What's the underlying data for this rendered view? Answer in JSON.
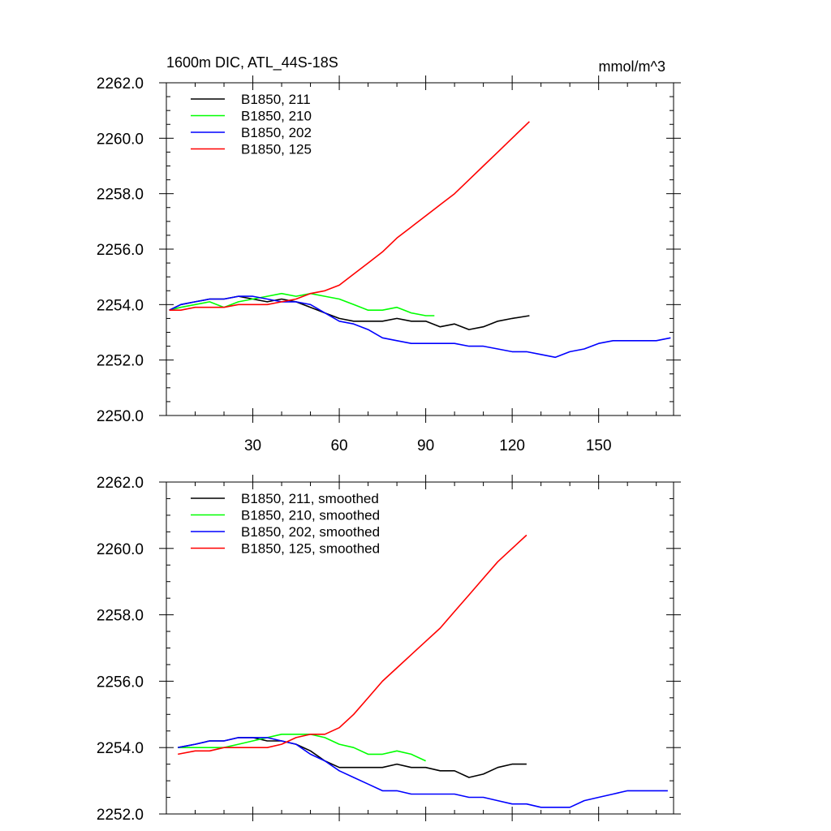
{
  "chart_data": [
    {
      "type": "line",
      "title": "1600m DIC, ATL_44S-18S",
      "units": "mmol/m^3",
      "xlim": [
        0,
        176
      ],
      "ylim": [
        2250,
        2262
      ],
      "xticks": [
        30,
        60,
        90,
        120,
        150
      ],
      "xtick_labels": [
        "30",
        "60",
        "90",
        "120",
        "150"
      ],
      "yticks": [
        2250,
        2252,
        2254,
        2256,
        2258,
        2260,
        2262
      ],
      "ytick_labels": [
        "2250.0",
        "2252.0",
        "2254.0",
        "2256.0",
        "2258.0",
        "2260.0",
        "2262.0"
      ],
      "legend_position": "top-left",
      "series": [
        {
          "name": "B1850, 211",
          "color": "#000000",
          "x": [
            1,
            5,
            10,
            15,
            20,
            25,
            30,
            35,
            40,
            45,
            50,
            55,
            60,
            65,
            70,
            75,
            80,
            85,
            90,
            95,
            100,
            105,
            110,
            115,
            120,
            126
          ],
          "y": [
            2253.8,
            2254.0,
            2254.1,
            2254.2,
            2254.2,
            2254.3,
            2254.2,
            2254.1,
            2254.2,
            2254.1,
            2253.9,
            2253.7,
            2253.5,
            2253.4,
            2253.4,
            2253.4,
            2253.5,
            2253.4,
            2253.4,
            2253.2,
            2253.3,
            2253.1,
            2253.2,
            2253.4,
            2253.5,
            2253.6
          ]
        },
        {
          "name": "B1850, 210",
          "color": "#00ff00",
          "x": [
            1,
            5,
            10,
            15,
            20,
            25,
            30,
            35,
            40,
            45,
            50,
            55,
            60,
            65,
            70,
            75,
            80,
            85,
            90,
            93
          ],
          "y": [
            2253.8,
            2253.9,
            2254.0,
            2254.1,
            2253.9,
            2254.1,
            2254.2,
            2254.3,
            2254.4,
            2254.3,
            2254.4,
            2254.3,
            2254.2,
            2254.0,
            2253.8,
            2253.8,
            2253.9,
            2253.7,
            2253.6,
            2253.6
          ]
        },
        {
          "name": "B1850, 202",
          "color": "#0000ff",
          "x": [
            1,
            5,
            10,
            15,
            20,
            25,
            30,
            35,
            40,
            45,
            50,
            55,
            60,
            65,
            70,
            75,
            80,
            85,
            90,
            95,
            100,
            105,
            110,
            115,
            120,
            125,
            130,
            135,
            140,
            145,
            150,
            155,
            160,
            165,
            170,
            175
          ],
          "y": [
            2253.8,
            2254.0,
            2254.1,
            2254.2,
            2254.2,
            2254.3,
            2254.3,
            2254.2,
            2254.1,
            2254.1,
            2254.0,
            2253.7,
            2253.4,
            2253.3,
            2253.1,
            2252.8,
            2252.7,
            2252.6,
            2252.6,
            2252.6,
            2252.6,
            2252.5,
            2252.5,
            2252.4,
            2252.3,
            2252.3,
            2252.2,
            2252.1,
            2252.3,
            2252.4,
            2252.6,
            2252.7,
            2252.7,
            2252.7,
            2252.7,
            2252.8
          ]
        },
        {
          "name": "B1850, 125",
          "color": "#ff0000",
          "x": [
            1,
            5,
            10,
            15,
            20,
            25,
            30,
            35,
            40,
            45,
            50,
            55,
            60,
            65,
            70,
            75,
            80,
            85,
            90,
            95,
            100,
            105,
            110,
            115,
            120,
            126
          ],
          "y": [
            2253.8,
            2253.8,
            2253.9,
            2253.9,
            2253.9,
            2254.0,
            2254.0,
            2254.0,
            2254.1,
            2254.2,
            2254.4,
            2254.5,
            2254.7,
            2255.1,
            2255.5,
            2255.9,
            2256.4,
            2256.8,
            2257.2,
            2257.6,
            2258.0,
            2258.5,
            2259.0,
            2259.5,
            2260.0,
            2260.6
          ]
        }
      ]
    },
    {
      "type": "line",
      "xlim": [
        0,
        176
      ],
      "ylim": [
        2252,
        2262
      ],
      "yticks": [
        2252,
        2254,
        2256,
        2258,
        2260,
        2262
      ],
      "ytick_labels": [
        "2252.0",
        "2254.0",
        "2256.0",
        "2258.0",
        "2260.0",
        "2262.0"
      ],
      "legend_position": "top-left",
      "series": [
        {
          "name": "B1850, 211, smoothed",
          "color": "#000000",
          "x": [
            4,
            10,
            15,
            20,
            25,
            30,
            35,
            40,
            45,
            50,
            55,
            60,
            65,
            70,
            75,
            80,
            85,
            90,
            95,
            100,
            105,
            110,
            115,
            120,
            125
          ],
          "y": [
            2254.0,
            2254.1,
            2254.2,
            2254.2,
            2254.3,
            2254.3,
            2254.2,
            2254.2,
            2254.1,
            2253.9,
            2253.6,
            2253.4,
            2253.4,
            2253.4,
            2253.4,
            2253.5,
            2253.4,
            2253.4,
            2253.3,
            2253.3,
            2253.1,
            2253.2,
            2253.4,
            2253.5,
            2253.5
          ]
        },
        {
          "name": "B1850, 210, smoothed",
          "color": "#00ff00",
          "x": [
            4,
            10,
            15,
            20,
            25,
            30,
            35,
            40,
            45,
            50,
            55,
            60,
            65,
            70,
            75,
            80,
            85,
            90
          ],
          "y": [
            2254.0,
            2254.0,
            2254.0,
            2254.0,
            2254.1,
            2254.2,
            2254.3,
            2254.4,
            2254.4,
            2254.4,
            2254.3,
            2254.1,
            2254.0,
            2253.8,
            2253.8,
            2253.9,
            2253.8,
            2253.6
          ]
        },
        {
          "name": "B1850, 202, smoothed",
          "color": "#0000ff",
          "x": [
            4,
            10,
            15,
            20,
            25,
            30,
            35,
            40,
            45,
            50,
            55,
            60,
            65,
            70,
            75,
            80,
            85,
            90,
            95,
            100,
            105,
            110,
            115,
            120,
            125,
            130,
            135,
            140,
            145,
            150,
            155,
            160,
            165,
            170,
            174
          ],
          "y": [
            2254.0,
            2254.1,
            2254.2,
            2254.2,
            2254.3,
            2254.3,
            2254.3,
            2254.2,
            2254.1,
            2253.8,
            2253.6,
            2253.3,
            2253.1,
            2252.9,
            2252.7,
            2252.7,
            2252.6,
            2252.6,
            2252.6,
            2252.6,
            2252.5,
            2252.5,
            2252.4,
            2252.3,
            2252.3,
            2252.2,
            2252.2,
            2252.2,
            2252.4,
            2252.5,
            2252.6,
            2252.7,
            2252.7,
            2252.7,
            2252.7
          ]
        },
        {
          "name": "B1850, 125, smoothed",
          "color": "#ff0000",
          "x": [
            4,
            10,
            15,
            20,
            25,
            30,
            35,
            40,
            45,
            50,
            55,
            60,
            65,
            70,
            75,
            80,
            85,
            90,
            95,
            100,
            105,
            110,
            115,
            120,
            125
          ],
          "y": [
            2253.8,
            2253.9,
            2253.9,
            2254.0,
            2254.0,
            2254.0,
            2254.0,
            2254.1,
            2254.3,
            2254.4,
            2254.4,
            2254.6,
            2255.0,
            2255.5,
            2256.0,
            2256.4,
            2256.8,
            2257.2,
            2257.6,
            2258.1,
            2258.6,
            2259.1,
            2259.6,
            2260.0,
            2260.4
          ]
        }
      ]
    }
  ]
}
